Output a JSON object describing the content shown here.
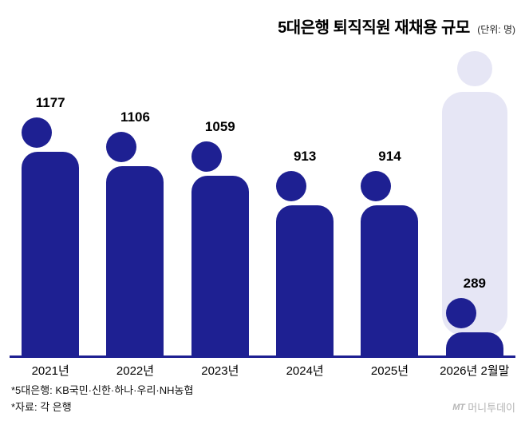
{
  "title": "5대은행 퇴직직원 재채용 규모",
  "unit": "(단위: 명)",
  "footnotes": {
    "line1": "*5대은행: KB국민·신한·하나·우리·NH농협",
    "line2": "*자료: 각 은행"
  },
  "logo": {
    "mark": "MT",
    "text": "머니투데이"
  },
  "colors": {
    "figure": "#1e2092",
    "ghost": "#e6e6f5",
    "value_label": "#000000",
    "background": "#ffffff"
  },
  "chart_data": {
    "type": "bar",
    "style": "pictogram-person",
    "title": "5대은행 퇴직직원 재채용 규모",
    "unit": "명",
    "categories": [
      "2021년",
      "2022년",
      "2023년",
      "2024년",
      "2025년",
      "2026년 2월말"
    ],
    "values": [
      1177,
      1106,
      1059,
      913,
      914,
      289
    ],
    "max_value": 1177,
    "ylim": [
      0,
      1177
    ],
    "grid": false,
    "legend": "none",
    "annotations": "2026년 2월말 column shows a small dark figure (289) in front of a large pale ghost silhouette indicating the previous scale"
  }
}
